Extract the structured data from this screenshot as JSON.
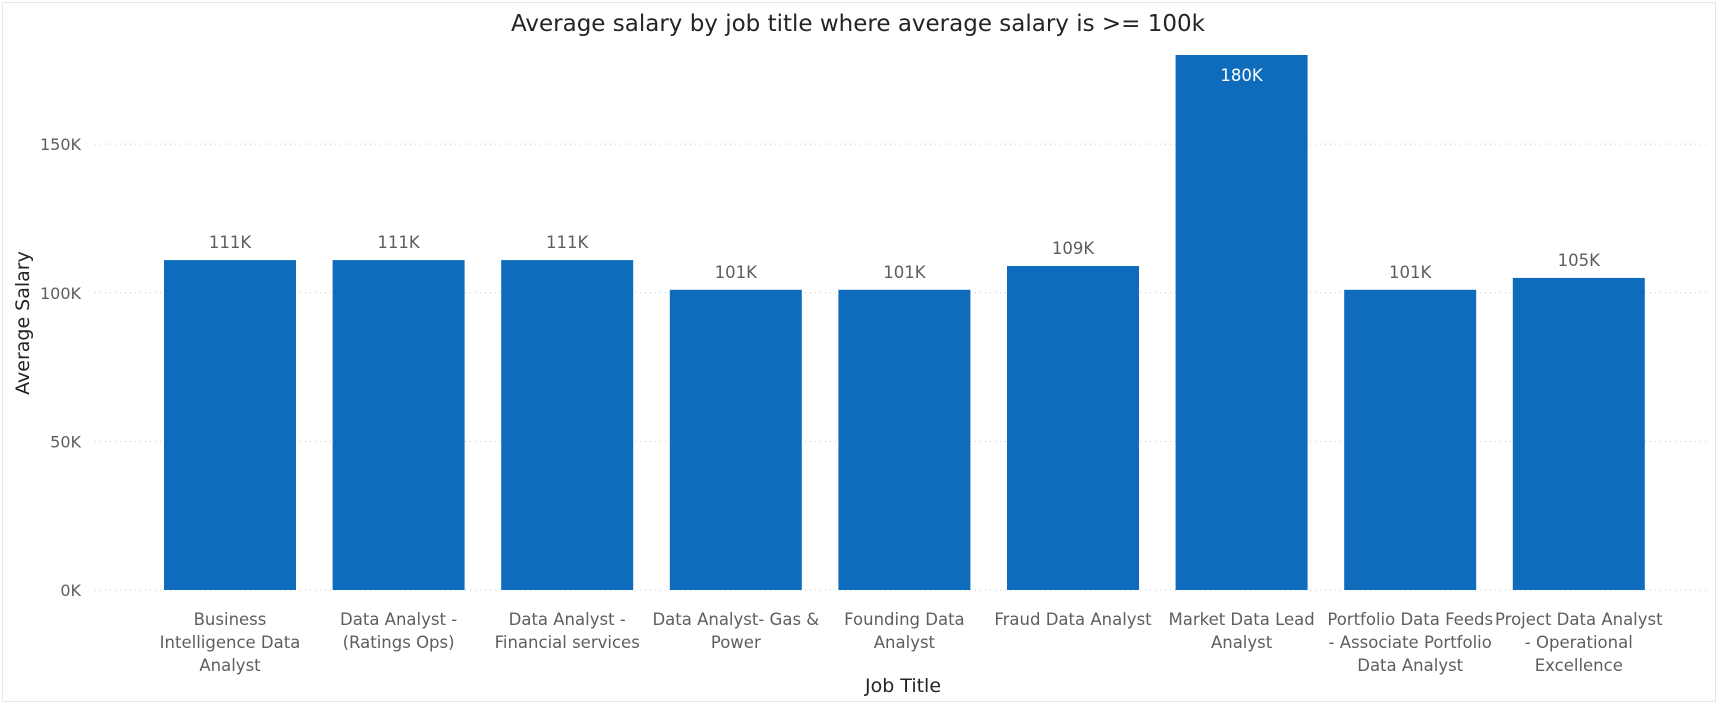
{
  "chart_data": {
    "type": "bar",
    "title": "Average salary by job title where average salary is >= 100k",
    "xlabel": "Job Title",
    "ylabel": "Average Salary",
    "ylim": [
      0,
      180000
    ],
    "yticks": [
      0,
      50000,
      100000,
      150000
    ],
    "ytick_labels": [
      "0K",
      "50K",
      "100K",
      "150K"
    ],
    "grid": true,
    "legend": "none",
    "bar_color": "#0f6cbd",
    "categories": [
      [
        "Business",
        "Intelligence Data",
        "Analyst"
      ],
      [
        "Data Analyst -",
        "(Ratings Ops)"
      ],
      [
        "Data Analyst -",
        "Financial services"
      ],
      [
        "Data Analyst- Gas &",
        "Power"
      ],
      [
        "Founding Data",
        "Analyst"
      ],
      [
        "Fraud Data Analyst"
      ],
      [
        "Market Data Lead",
        "Analyst"
      ],
      [
        "Portfolio Data Feeds",
        "- Associate Portfolio",
        "Data Analyst"
      ],
      [
        "Project Data Analyst",
        "- Operational",
        "Excellence"
      ]
    ],
    "values": [
      111000,
      111000,
      111000,
      101000,
      101000,
      109000,
      180000,
      101000,
      105000
    ],
    "data_labels": [
      "111K",
      "111K",
      "111K",
      "101K",
      "101K",
      "109K",
      "180K",
      "101K",
      "105K"
    ]
  }
}
